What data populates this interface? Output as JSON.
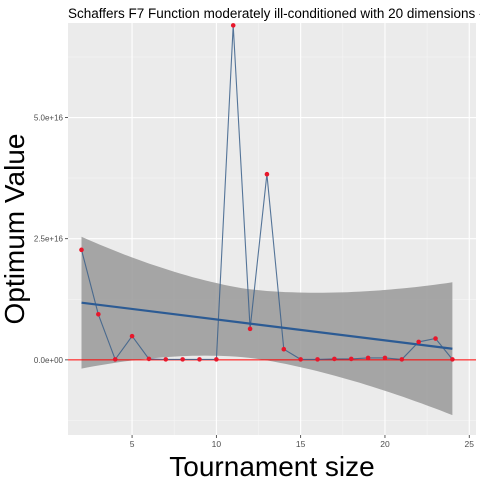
{
  "chart_data": {
    "type": "line",
    "title": "Schaffers F7 Function moderately ill-conditioned with 20 dimensions -",
    "xlabel": "Tournament size",
    "ylabel": "Optimum Value",
    "x_ticks": [
      5,
      10,
      15,
      20,
      25
    ],
    "x_tick_labels": [
      "5",
      "10",
      "15",
      "20",
      "25"
    ],
    "y_ticks": [
      0,
      2.5e+16,
      5e+16
    ],
    "y_tick_labels": [
      "0.0e+00",
      "2.5e+16",
      "5.0e+16"
    ],
    "xlim": [
      1.2,
      25.4
    ],
    "ylim": [
      -1.55e+16,
      6.95e+16
    ],
    "grid": true,
    "series": [
      {
        "x": [
          2,
          3,
          4,
          5,
          6,
          7,
          8,
          9,
          10,
          11,
          12,
          13,
          14,
          15,
          16,
          17,
          18,
          19,
          20,
          21,
          22,
          23,
          24
        ],
        "values": [
          2.27e+16,
          9400000000000000.0,
          100000000000000.0,
          4900000000000000.0,
          200000000000000.0,
          100000000000000.0,
          100000000000000.0,
          100000000000000.0,
          100000000000000.0,
          6.9e+16,
          6400000000000000.0,
          3.83e+16,
          2200000000000000.0,
          100000000000000.0,
          100000000000000.0,
          200000000000000.0,
          200000000000000.0,
          400000000000000.0,
          400000000000000.0,
          100000000000000.0,
          3700000000000000.0,
          4400000000000000.0,
          100000000000000.0
        ],
        "color": "#3a5f8a"
      }
    ],
    "trend": {
      "x": [
        2,
        24
      ],
      "values": [
        1.18e+16,
        2300000000000000.0
      ],
      "ci_lower": [
        -1700000000000000.0,
        -1.12e+16
      ],
      "ci_upper": [
        2.55e+16,
        1.62e+16
      ],
      "color": "#2c5b94",
      "band_color": "#999999"
    },
    "reference_line": {
      "y": 0,
      "color": "#ff0000"
    },
    "point_color": "#e8172b"
  }
}
